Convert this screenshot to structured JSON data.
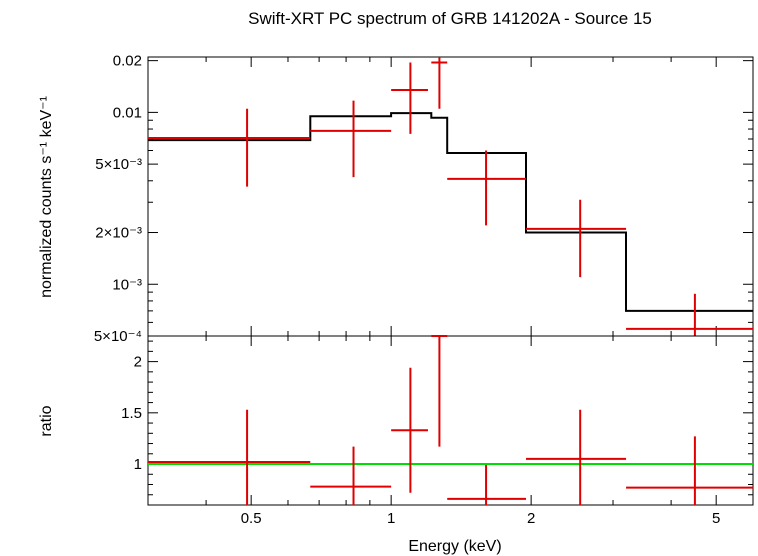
{
  "chart_data": [
    {
      "type": "scatter",
      "title": "Swift-XRT PC spectrum of GRB 141202A - Source 15",
      "ylabel": "normalized counts s⁻¹ keV⁻¹",
      "xscale": "log",
      "yscale": "log",
      "xlim": [
        0.3,
        6.0
      ],
      "ylim": [
        0.0005,
        0.021
      ],
      "yticks": [
        {
          "value": 0.02,
          "label": "0.02"
        },
        {
          "value": 0.01,
          "label": "0.01"
        },
        {
          "value": 0.005,
          "label": "5×10⁻³"
        },
        {
          "value": 0.002,
          "label": "2×10⁻³"
        },
        {
          "value": 0.001,
          "label": "10⁻³"
        },
        {
          "value": 0.0005,
          "label": "5×10⁻⁴"
        }
      ],
      "data_points": {
        "color": "#e00000",
        "points": [
          {
            "x": 0.49,
            "xlo": 0.3,
            "xhi": 0.67,
            "y": 0.0071,
            "ylo": 0.0037,
            "yhi": 0.0105
          },
          {
            "x": 0.83,
            "xlo": 0.67,
            "xhi": 1.0,
            "y": 0.0078,
            "ylo": 0.0042,
            "yhi": 0.0117
          },
          {
            "x": 1.1,
            "xlo": 1.0,
            "xhi": 1.2,
            "y": 0.0135,
            "ylo": 0.0075,
            "yhi": 0.0195
          },
          {
            "x": 1.27,
            "xlo": 1.22,
            "xhi": 1.32,
            "y": 0.0195,
            "ylo": 0.0105,
            "yhi": 0.0215
          },
          {
            "x": 1.6,
            "xlo": 1.32,
            "xhi": 1.95,
            "y": 0.0041,
            "ylo": 0.0022,
            "yhi": 0.006
          },
          {
            "x": 2.55,
            "xlo": 1.95,
            "xhi": 3.2,
            "y": 0.0021,
            "ylo": 0.0011,
            "yhi": 0.0031
          },
          {
            "x": 4.5,
            "xlo": 3.2,
            "xhi": 6.0,
            "y": 0.00055,
            "ylo": 0.0005,
            "yhi": 0.00088
          }
        ]
      },
      "model": {
        "color": "#000000",
        "steps": [
          {
            "x0": 0.3,
            "x1": 0.67,
            "y": 0.0069
          },
          {
            "x0": 0.67,
            "x1": 1.0,
            "y": 0.0095
          },
          {
            "x0": 1.0,
            "x1": 1.22,
            "y": 0.0099
          },
          {
            "x0": 1.22,
            "x1": 1.32,
            "y": 0.0093
          },
          {
            "x0": 1.32,
            "x1": 1.95,
            "y": 0.0058
          },
          {
            "x0": 1.95,
            "x1": 3.2,
            "y": 0.002
          },
          {
            "x0": 3.2,
            "x1": 6.0,
            "y": 0.0007
          }
        ]
      }
    },
    {
      "type": "scatter",
      "xlabel": "Energy (keV)",
      "ylabel": "ratio",
      "xscale": "log",
      "yscale": "linear",
      "xlim": [
        0.3,
        6.0
      ],
      "ylim": [
        0.6,
        2.25
      ],
      "xticks": [
        {
          "value": 0.5,
          "label": "0.5"
        },
        {
          "value": 1,
          "label": "1"
        },
        {
          "value": 2,
          "label": "2"
        },
        {
          "value": 5,
          "label": "5"
        }
      ],
      "yticks": [
        {
          "value": 2,
          "label": "2"
        },
        {
          "value": 1.5,
          "label": "1.5"
        },
        {
          "value": 1,
          "label": "1"
        }
      ],
      "reference_line": {
        "y": 1,
        "color": "#00dd00"
      },
      "data_points": {
        "color": "#e00000",
        "points": [
          {
            "x": 0.49,
            "xlo": 0.3,
            "xhi": 0.67,
            "y": 1.02,
            "ylo": 0.6,
            "yhi": 1.53
          },
          {
            "x": 0.83,
            "xlo": 0.67,
            "xhi": 1.0,
            "y": 0.78,
            "ylo": 0.6,
            "yhi": 1.17
          },
          {
            "x": 1.1,
            "xlo": 1.0,
            "xhi": 1.2,
            "y": 1.33,
            "ylo": 0.72,
            "yhi": 1.94
          },
          {
            "x": 1.27,
            "xlo": 1.22,
            "xhi": 1.32,
            "y": 2.25,
            "ylo": 1.17,
            "yhi": 2.25
          },
          {
            "x": 1.6,
            "xlo": 1.32,
            "xhi": 1.95,
            "y": 0.66,
            "ylo": 0.6,
            "yhi": 0.99
          },
          {
            "x": 2.55,
            "xlo": 1.95,
            "xhi": 3.2,
            "y": 1.05,
            "ylo": 0.6,
            "yhi": 1.53
          },
          {
            "x": 4.5,
            "xlo": 3.2,
            "xhi": 6.0,
            "y": 0.77,
            "ylo": 0.6,
            "yhi": 1.27
          }
        ]
      }
    }
  ]
}
